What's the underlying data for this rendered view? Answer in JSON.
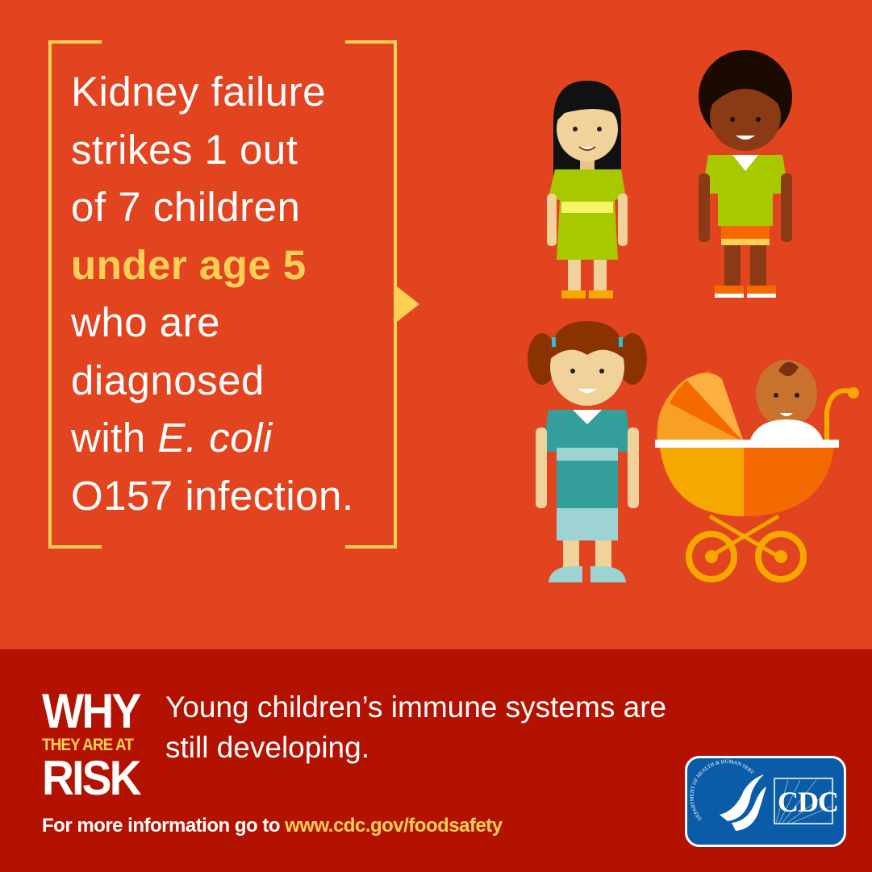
{
  "headline": {
    "line1": "Kidney failure",
    "line2": "strikes 1 out",
    "line3": "of 7 children",
    "highlight": "under age 5",
    "line5": "who are",
    "line6": "diagnosed",
    "line7_prefix": "with ",
    "line7_italic": "E. coli",
    "line8": "O157 infection."
  },
  "risk": {
    "why": "WHY",
    "they_are_at": "THEY ARE AT",
    "risk": "RISK",
    "reason": "Young children’s immune systems are still developing."
  },
  "footer": {
    "prefix": "For more information go to ",
    "url": "www.cdc.gov/foodsafety"
  },
  "logo": {
    "hhs_text": "DEPARTMENT OF HEALTH & HUMAN SERVICES · USA",
    "cdc": "CDC"
  },
  "colors": {
    "background": "#e2441f",
    "band": "#b31200",
    "accent_yellow": "#fdd055",
    "logo_blue": "#0b5ca8"
  }
}
